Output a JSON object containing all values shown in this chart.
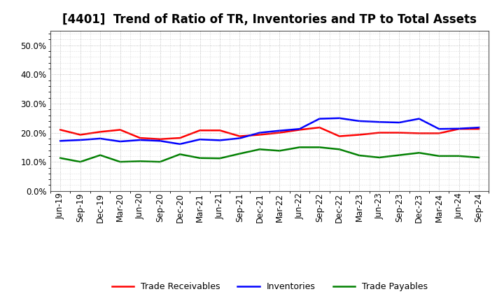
{
  "title": "[4401]  Trend of Ratio of TR, Inventories and TP to Total Assets",
  "x_labels": [
    "Jun-19",
    "Sep-19",
    "Dec-19",
    "Mar-20",
    "Jun-20",
    "Sep-20",
    "Dec-20",
    "Mar-21",
    "Jun-21",
    "Sep-21",
    "Dec-21",
    "Mar-22",
    "Jun-22",
    "Sep-22",
    "Dec-22",
    "Mar-23",
    "Jun-23",
    "Sep-23",
    "Dec-23",
    "Mar-24",
    "Jun-24",
    "Sep-24"
  ],
  "trade_receivables": [
    0.21,
    0.193,
    0.203,
    0.21,
    0.182,
    0.178,
    0.182,
    0.208,
    0.208,
    0.188,
    0.193,
    0.2,
    0.21,
    0.218,
    0.188,
    0.193,
    0.2,
    0.2,
    0.198,
    0.198,
    0.213,
    0.213
  ],
  "inventories": [
    0.172,
    0.175,
    0.18,
    0.17,
    0.175,
    0.172,
    0.161,
    0.177,
    0.174,
    0.181,
    0.2,
    0.207,
    0.213,
    0.248,
    0.25,
    0.24,
    0.237,
    0.235,
    0.248,
    0.213,
    0.214,
    0.218
  ],
  "trade_payables": [
    0.113,
    0.1,
    0.123,
    0.1,
    0.102,
    0.1,
    0.126,
    0.113,
    0.112,
    0.128,
    0.143,
    0.138,
    0.15,
    0.15,
    0.143,
    0.122,
    0.115,
    0.123,
    0.131,
    0.12,
    0.12,
    0.115
  ],
  "tr_color": "#FF0000",
  "inv_color": "#0000FF",
  "tp_color": "#008000",
  "ylim": [
    0.0,
    0.55
  ],
  "yticks": [
    0.0,
    0.1,
    0.2,
    0.3,
    0.4,
    0.5
  ],
  "bg_color": "#FFFFFF",
  "plot_bg_color": "#FFFFFF",
  "grid_color": "#999999",
  "line_width": 1.8,
  "title_fontsize": 12,
  "tick_fontsize": 8.5,
  "legend_fontsize": 9
}
